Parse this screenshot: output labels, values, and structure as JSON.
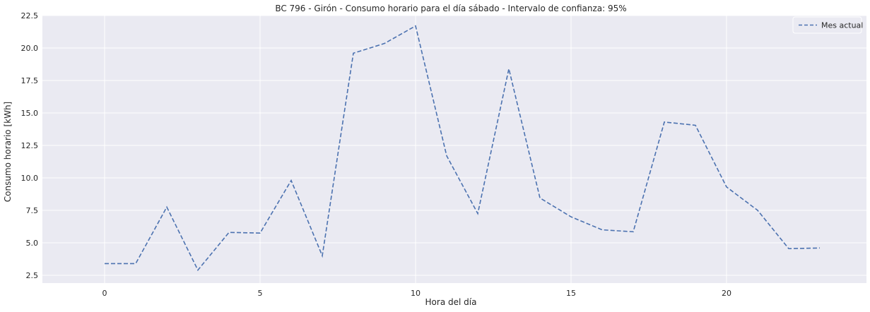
{
  "chart_data": {
    "type": "line",
    "title": "BC 796 - Girón - Consumo horario para el día sábado - Intervalo de confianza: 95%",
    "xlabel": "Hora del día",
    "ylabel": "Consumo horario [kWh]",
    "xlim": [
      -2,
      24.5
    ],
    "ylim": [
      1.9,
      22.5
    ],
    "xticks": [
      0,
      5,
      10,
      15,
      20
    ],
    "yticks": [
      2.5,
      5.0,
      7.5,
      10.0,
      12.5,
      15.0,
      17.5,
      20.0,
      22.5
    ],
    "xtick_labels": [
      "0",
      "5",
      "10",
      "15",
      "20"
    ],
    "ytick_labels": [
      "2.5",
      "5.0",
      "7.5",
      "10.0",
      "12.5",
      "15.0",
      "17.5",
      "20.0",
      "22.5"
    ],
    "grid": true,
    "legend_position": "top-right",
    "series": [
      {
        "name": "Mes actual",
        "style": "dashed",
        "color": "#4c72b0",
        "x": [
          0,
          1,
          2,
          3,
          4,
          5,
          6,
          7,
          8,
          9,
          10,
          11,
          12,
          13,
          14,
          15,
          16,
          17,
          18,
          19,
          20,
          21,
          22,
          23
        ],
        "y": [
          3.4,
          3.4,
          7.75,
          2.9,
          5.8,
          5.75,
          9.8,
          4.0,
          19.6,
          20.35,
          21.7,
          11.7,
          7.25,
          18.4,
          8.45,
          7.0,
          6.0,
          5.85,
          14.3,
          14.05,
          9.3,
          7.5,
          4.55,
          4.6
        ]
      }
    ]
  }
}
